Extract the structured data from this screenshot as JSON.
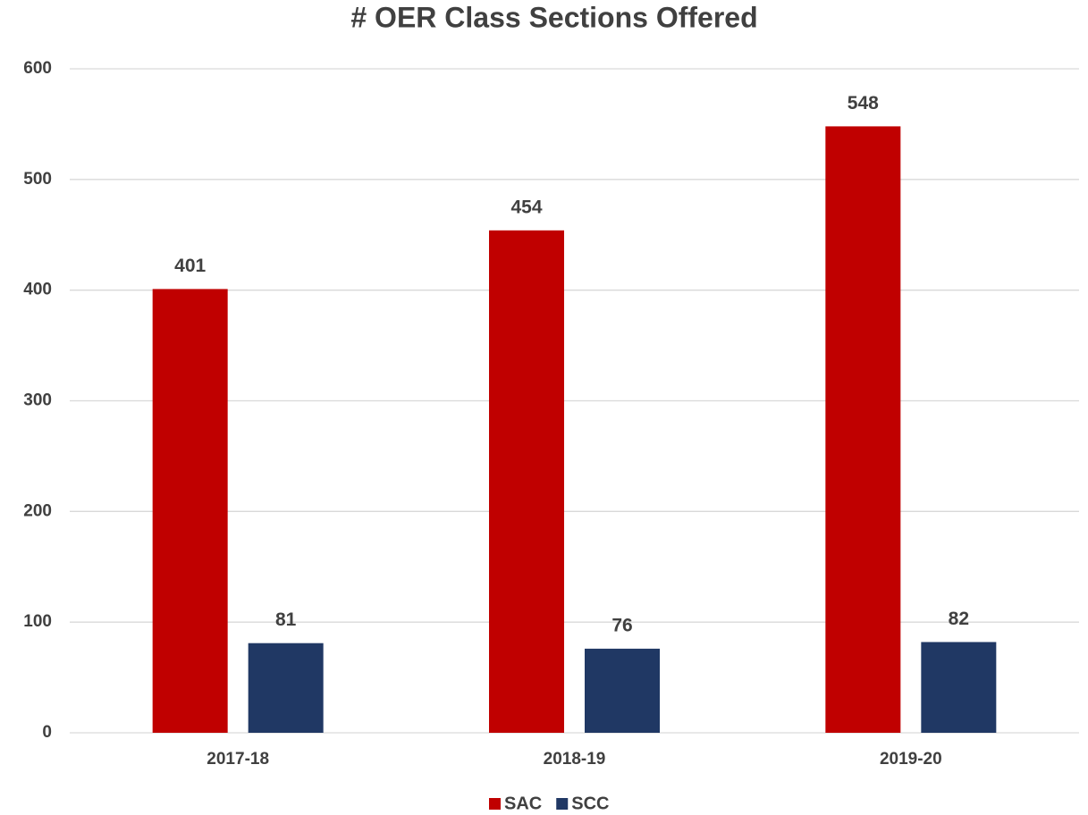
{
  "chart_data": {
    "type": "bar",
    "title": "# OER Class Sections Offered",
    "categories": [
      "2017-18",
      "2018-19",
      "2019-20"
    ],
    "series": [
      {
        "name": "SAC",
        "color": "#c00000",
        "values": [
          401,
          454,
          548
        ]
      },
      {
        "name": "SCC",
        "color": "#203864",
        "values": [
          81,
          76,
          82
        ]
      }
    ],
    "ylim": [
      0,
      600
    ],
    "yticks": [
      0,
      100,
      200,
      300,
      400,
      500,
      600
    ],
    "grid": true,
    "legend": "bottom"
  }
}
